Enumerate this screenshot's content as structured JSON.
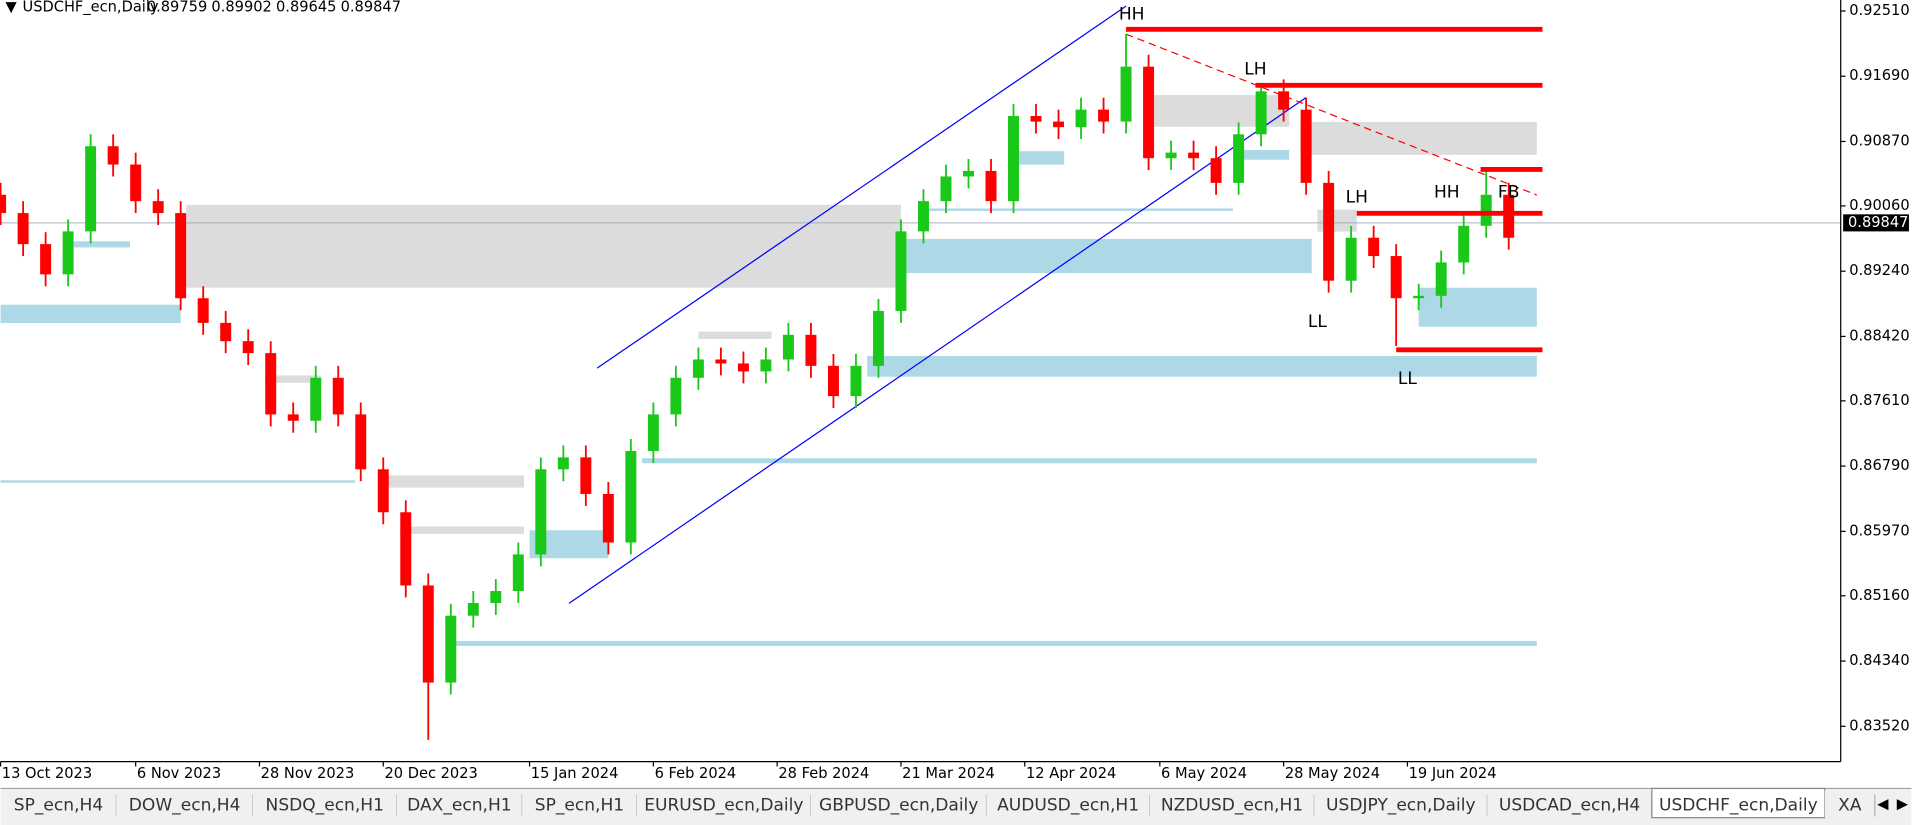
{
  "header": {
    "symbol": "USDCHF_ecn,Daily",
    "open": 0.89759,
    "high": 0.89902,
    "low": 0.89645,
    "close": 0.89847
  },
  "tabs": [
    "SP_ecn,H4",
    "DOW_ecn,H4",
    "NSDQ_ecn,H1",
    "DAX_ecn,H1",
    "SP_ecn,H1",
    "EURUSD_ecn,Daily",
    "GBPUSD_ecn,Daily",
    "AUDUSD_ecn,H1",
    "NZDUSD_ecn,H1",
    "USDJPY_ecn,Daily",
    "USDCAD_ecn,H4",
    "USDCHF_ecn,Daily",
    "XA"
  ],
  "active_tab": 11,
  "chart_data": {
    "type": "candlestick",
    "up_color": "#19c819",
    "down_color": "#ff0000",
    "x": [
      "2023-10-13",
      "2023-10-17",
      "2023-10-21",
      "2023-10-25",
      "2023-10-29",
      "2023-11-02",
      "2023-11-06",
      "2023-11-10",
      "2023-11-14",
      "2023-11-18",
      "2023-11-22",
      "2023-11-26",
      "2023-11-30",
      "2023-12-04",
      "2023-12-08",
      "2023-12-12",
      "2023-12-16",
      "2023-12-20",
      "2023-12-24",
      "2023-12-28",
      "2024-01-01",
      "2024-01-05",
      "2024-01-09",
      "2024-01-13",
      "2024-01-17",
      "2024-01-21",
      "2024-01-25",
      "2024-01-29",
      "2024-02-02",
      "2024-02-06",
      "2024-02-10",
      "2024-02-14",
      "2024-02-18",
      "2024-02-22",
      "2024-02-26",
      "2024-03-01",
      "2024-03-05",
      "2024-03-09",
      "2024-03-13",
      "2024-03-17",
      "2024-03-21",
      "2024-03-25",
      "2024-03-29",
      "2024-04-02",
      "2024-04-06",
      "2024-04-10",
      "2024-04-14",
      "2024-04-18",
      "2024-04-22",
      "2024-04-26",
      "2024-04-30",
      "2024-05-04",
      "2024-05-08",
      "2024-05-12",
      "2024-05-16",
      "2024-05-20",
      "2024-05-24",
      "2024-05-28",
      "2024-06-01",
      "2024-06-05",
      "2024-06-09",
      "2024-06-13",
      "2024-06-17",
      "2024-06-21",
      "2024-06-25",
      "2024-06-29",
      "2024-07-03",
      "2024-07-07"
    ],
    "open": [
      0.902,
      0.8997,
      0.8958,
      0.892,
      0.8974,
      0.9081,
      0.9058,
      0.9012,
      0.8997,
      0.889,
      0.8859,
      0.8836,
      0.8821,
      0.8744,
      0.8736,
      0.879,
      0.8744,
      0.8675,
      0.8621,
      0.8529,
      0.8407,
      0.8491,
      0.8507,
      0.8522,
      0.8568,
      0.8675,
      0.869,
      0.8644,
      0.8583,
      0.8698,
      0.8744,
      0.879,
      0.8813,
      0.8808,
      0.8798,
      0.8813,
      0.8844,
      0.8805,
      0.8767,
      0.8805,
      0.8874,
      0.8974,
      0.9012,
      0.9043,
      0.905,
      0.9012,
      0.9119,
      0.9112,
      0.9105,
      0.9127,
      0.9112,
      0.9181,
      0.9066,
      0.9073,
      0.9066,
      0.9035,
      0.9096,
      0.915,
      0.9127,
      0.9035,
      0.8912,
      0.8966,
      0.8943,
      0.889,
      0.8893,
      0.8935,
      0.8981,
      0.902
    ],
    "high": [
      0.9035,
      0.9012,
      0.8973,
      0.8989,
      0.9096,
      0.9096,
      0.9073,
      0.9027,
      0.9012,
      0.8905,
      0.8874,
      0.8851,
      0.8836,
      0.8759,
      0.8805,
      0.8805,
      0.8759,
      0.869,
      0.8636,
      0.8544,
      0.8506,
      0.8522,
      0.8537,
      0.8583,
      0.869,
      0.8705,
      0.8705,
      0.8659,
      0.8713,
      0.8759,
      0.8805,
      0.8828,
      0.8828,
      0.8823,
      0.8828,
      0.8859,
      0.8859,
      0.882,
      0.882,
      0.8889,
      0.8989,
      0.9027,
      0.9058,
      0.9065,
      0.9065,
      0.9134,
      0.9134,
      0.9127,
      0.9142,
      0.9142,
      0.9222,
      0.9196,
      0.9088,
      0.9088,
      0.9081,
      0.9111,
      0.916,
      0.9165,
      0.9142,
      0.905,
      0.8981,
      0.8981,
      0.8958,
      0.8908,
      0.895,
      0.8996,
      0.905,
      0.9035
    ],
    "low": [
      0.8982,
      0.8943,
      0.8905,
      0.8905,
      0.8959,
      0.9043,
      0.8997,
      0.8982,
      0.8875,
      0.8844,
      0.8821,
      0.8806,
      0.8729,
      0.8721,
      0.8721,
      0.8729,
      0.866,
      0.8606,
      0.8514,
      0.8335,
      0.8392,
      0.8476,
      0.8492,
      0.8507,
      0.8553,
      0.866,
      0.8629,
      0.8568,
      0.8568,
      0.8683,
      0.8729,
      0.8775,
      0.8793,
      0.8783,
      0.8783,
      0.8798,
      0.879,
      0.8752,
      0.8752,
      0.879,
      0.8859,
      0.8959,
      0.8997,
      0.9028,
      0.8997,
      0.8997,
      0.9097,
      0.909,
      0.909,
      0.9097,
      0.9097,
      0.9051,
      0.9051,
      0.9051,
      0.902,
      0.902,
      0.9081,
      0.9112,
      0.902,
      0.8897,
      0.8897,
      0.8928,
      0.883,
      0.8875,
      0.8878,
      0.892,
      0.8966,
      0.8951
    ],
    "close": [
      0.8997,
      0.8958,
      0.892,
      0.8974,
      0.9081,
      0.9058,
      0.9012,
      0.8997,
      0.889,
      0.8859,
      0.8836,
      0.8821,
      0.8744,
      0.8736,
      0.879,
      0.8744,
      0.8675,
      0.8621,
      0.8529,
      0.8407,
      0.8491,
      0.8507,
      0.8522,
      0.8568,
      0.8675,
      0.869,
      0.8644,
      0.8583,
      0.8698,
      0.8744,
      0.879,
      0.8813,
      0.8808,
      0.8798,
      0.8813,
      0.8844,
      0.8805,
      0.8767,
      0.8805,
      0.8874,
      0.8974,
      0.9012,
      0.9043,
      0.905,
      0.9012,
      0.9119,
      0.9112,
      0.9105,
      0.9127,
      0.9112,
      0.9181,
      0.9066,
      0.9073,
      0.9066,
      0.9035,
      0.9096,
      0.915,
      0.9127,
      0.9035,
      0.8912,
      0.8966,
      0.8943,
      0.889,
      0.8893,
      0.8935,
      0.8981,
      0.902,
      0.8966
    ],
    "xlim": [
      "2023-10-13",
      "2024-09-04"
    ],
    "xticks": [
      {
        "value": "2023-10-13",
        "label": "13 Oct 2023"
      },
      {
        "value": "2023-11-06",
        "label": "6 Nov 2023"
      },
      {
        "value": "2023-11-28",
        "label": "28 Nov 2023"
      },
      {
        "value": "2023-12-20",
        "label": "20 Dec 2023"
      },
      {
        "value": "2024-01-15",
        "label": "15 Jan 2024"
      },
      {
        "value": "2024-02-06",
        "label": "6 Feb 2024"
      },
      {
        "value": "2024-02-28",
        "label": "28 Feb 2024"
      },
      {
        "value": "2024-03-21",
        "label": "21 Mar 2024"
      },
      {
        "value": "2024-04-12",
        "label": "12 Apr 2024"
      },
      {
        "value": "2024-05-06",
        "label": "6 May 2024"
      },
      {
        "value": "2024-05-28",
        "label": "28 May 2024"
      },
      {
        "value": "2024-06-19",
        "label": "19 Jun 2024"
      }
    ],
    "ylim": [
      0.83076,
      0.92648
    ],
    "yticks": [
      {
        "value": 0.9251,
        "label": "0.92510"
      },
      {
        "value": 0.9169,
        "label": "0.91690"
      },
      {
        "value": 0.9087,
        "label": "0.90870"
      },
      {
        "value": 0.9006,
        "label": "0.90060"
      },
      {
        "value": 0.8924,
        "label": "0.89240"
      },
      {
        "value": 0.8842,
        "label": "0.88420"
      },
      {
        "value": 0.8761,
        "label": "0.87610"
      },
      {
        "value": 0.8679,
        "label": "0.86790"
      },
      {
        "value": 0.8597,
        "label": "0.85970"
      },
      {
        "value": 0.8516,
        "label": "0.85160"
      },
      {
        "value": 0.8434,
        "label": "0.84340"
      },
      {
        "value": 0.8352,
        "label": "0.83520"
      }
    ],
    "last_price": 0.89847,
    "zones": [
      {
        "x": [
          "2023-11-15",
          "2024-03-21"
        ],
        "y": [
          0.90074,
          0.89032
        ],
        "color": "#dcdcdc"
      },
      {
        "x": [
          "2024-05-03",
          "2024-05-29"
        ],
        "y": [
          0.91453,
          0.91055
        ],
        "color": "#dcdcdc"
      },
      {
        "x": [
          "2024-05-31",
          "2024-07-12"
        ],
        "y": [
          0.91116,
          0.90702
        ],
        "color": "#dcdcdc"
      },
      {
        "x": [
          "2023-12-20",
          "2024-01-14"
        ],
        "y": [
          0.86673,
          0.8652
        ],
        "color": "#dcdcdc"
      },
      {
        "x": [
          "2024-06-03",
          "2024-06-10"
        ],
        "y": [
          0.90013,
          0.89737
        ],
        "color": "#dcdcdc"
      },
      {
        "x": [
          "2023-12-23",
          "2024-01-14"
        ],
        "y": [
          0.8603,
          0.85938
        ],
        "color": "#dcdcdc"
      },
      {
        "x": [
          "2023-11-29",
          "2023-12-09"
        ],
        "y": [
          0.87929,
          0.87837
        ],
        "color": "#dcdcdc"
      },
      {
        "x": [
          "2024-02-14",
          "2024-02-27"
        ],
        "y": [
          0.88481,
          0.88389
        ],
        "color": "#dcdcdc"
      },
      {
        "x": [
          "2023-10-13",
          "2023-11-14"
        ],
        "y": [
          0.88818,
          0.88588
        ],
        "color": "#add8e6"
      },
      {
        "x": [
          "2024-03-22",
          "2024-06-02"
        ],
        "y": [
          0.89645,
          0.89216
        ],
        "color": "#add8e6"
      },
      {
        "x": [
          "2024-03-15",
          "2024-07-12"
        ],
        "y": [
          0.88175,
          0.87914
        ],
        "color": "#add8e6"
      },
      {
        "x": [
          "2024-06-21",
          "2024-07-12"
        ],
        "y": [
          0.89032,
          0.88542
        ],
        "color": "#add8e6"
      },
      {
        "x": [
          "2024-02-04",
          "2024-07-12"
        ],
        "y": [
          0.86888,
          0.86826
        ],
        "color": "#add8e6"
      },
      {
        "x": [
          "2024-01-01",
          "2024-07-12"
        ],
        "y": [
          0.84591,
          0.8453
        ],
        "color": "#add8e6"
      },
      {
        "x": [
          "2023-10-13",
          "2023-12-15"
        ],
        "y": [
          0.86612,
          0.86582
        ],
        "color": "#add8e6"
      },
      {
        "x": [
          "2024-01-15",
          "2024-01-29"
        ],
        "y": [
          0.85984,
          0.85632
        ],
        "color": "#add8e6"
      },
      {
        "x": [
          "2024-04-10",
          "2024-04-19"
        ],
        "y": [
          0.90748,
          0.9058
        ],
        "color": "#add8e6"
      },
      {
        "x": [
          "2024-05-19",
          "2024-05-29"
        ],
        "y": [
          0.90764,
          0.90641
        ],
        "color": "#add8e6"
      },
      {
        "x": [
          "2023-10-26",
          "2023-11-05"
        ],
        "y": [
          0.89615,
          0.89538
        ],
        "color": "#add8e6"
      },
      {
        "x": [
          "2024-03-26",
          "2024-05-19"
        ],
        "y": [
          0.90028,
          0.89998
        ],
        "color": "#add8e6"
      }
    ],
    "levels": [
      {
        "x": [
          "2024-04-30",
          "2024-07-13"
        ],
        "y": 0.9228,
        "color": "#ff0000"
      },
      {
        "x": [
          "2024-05-23",
          "2024-07-13"
        ],
        "y": 0.91576,
        "color": "#ff0000"
      },
      {
        "x": [
          "2024-07-02",
          "2024-07-13"
        ],
        "y": 0.90519,
        "color": "#ff0000"
      },
      {
        "x": [
          "2024-06-10",
          "2024-07-13"
        ],
        "y": 0.89967,
        "color": "#ff0000"
      },
      {
        "x": [
          "2024-06-17",
          "2024-07-13"
        ],
        "y": 0.88251,
        "color": "#ff0000"
      }
    ],
    "trendlines": [
      {
        "x": [
          "2024-01-27",
          "2024-04-30"
        ],
        "y": [
          0.88021,
          0.92571
        ],
        "color": "#0000ff",
        "dashed": false
      },
      {
        "x": [
          "2024-01-22",
          "2024-06-01"
        ],
        "y": [
          0.85065,
          0.91422
        ],
        "color": "#0000ff",
        "dashed": false
      },
      {
        "x": [
          "2024-04-30",
          "2024-07-12"
        ],
        "y": [
          0.92219,
          0.90197
        ],
        "color": "#ff0000",
        "dashed": true
      }
    ],
    "annotations": [
      {
        "text": "HH",
        "x": "2024-05-01",
        "y": 0.92464
      },
      {
        "text": "LH",
        "x": "2024-05-23",
        "y": 0.91775
      },
      {
        "text": "LH",
        "x": "2024-06-10",
        "y": 0.90166
      },
      {
        "text": "HH",
        "x": "2024-06-26",
        "y": 0.90228
      },
      {
        "text": "FB",
        "x": "2024-07-07",
        "y": 0.90228
      },
      {
        "text": "LL",
        "x": "2024-06-03",
        "y": 0.88603
      },
      {
        "text": "LL",
        "x": "2024-06-19",
        "y": 0.87883
      }
    ]
  }
}
